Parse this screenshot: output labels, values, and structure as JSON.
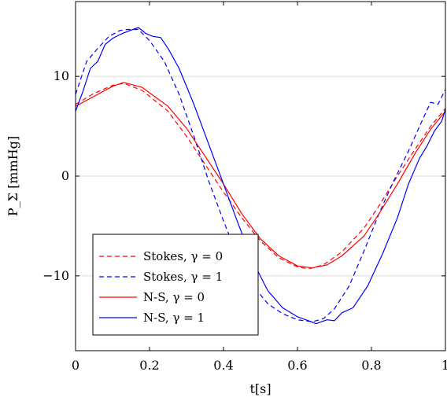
{
  "chart_data": {
    "type": "line",
    "xlabel": "t[s]",
    "ylabel": "P_Σ [mmHg]",
    "xlim": [
      0,
      1
    ],
    "ylim": [
      -17.5,
      17.5
    ],
    "x_ticks": [
      0,
      0.2,
      0.4,
      0.6,
      0.8,
      1
    ],
    "x_tick_labels": [
      "0",
      "0.2",
      "0.4",
      "0.6",
      "0.8",
      "1"
    ],
    "y_ticks": [
      -10,
      0,
      10
    ],
    "y_tick_labels": [
      "−10",
      "0",
      "10"
    ],
    "grid": "horizontal",
    "legend_position": "bottom-left",
    "series": [
      {
        "name": "Stokes, γ = 0",
        "color": "#ff0000",
        "dash": "dashed",
        "points": [
          [
            0,
            7.2
          ],
          [
            0.05,
            8.3
          ],
          [
            0.1,
            9.1
          ],
          [
            0.13,
            9.3
          ],
          [
            0.18,
            8.6
          ],
          [
            0.25,
            6.5
          ],
          [
            0.3,
            4.0
          ],
          [
            0.35,
            1.2
          ],
          [
            0.4,
            -1.6
          ],
          [
            0.45,
            -4.2
          ],
          [
            0.5,
            -6.5
          ],
          [
            0.55,
            -8.2
          ],
          [
            0.6,
            -9.1
          ],
          [
            0.63,
            -9.3
          ],
          [
            0.67,
            -8.9
          ],
          [
            0.72,
            -7.6
          ],
          [
            0.78,
            -5.2
          ],
          [
            0.82,
            -3.0
          ],
          [
            0.87,
            0.0
          ],
          [
            0.92,
            2.8
          ],
          [
            0.96,
            5.0
          ],
          [
            1.0,
            6.8
          ]
        ]
      },
      {
        "name": "Stokes, γ = 1",
        "color": "#0000ff",
        "dash": "dashed",
        "points": [
          [
            0,
            8.2
          ],
          [
            0.03,
            11.5
          ],
          [
            0.06,
            12.8
          ],
          [
            0.09,
            14.0
          ],
          [
            0.12,
            14.6
          ],
          [
            0.14,
            14.7
          ],
          [
            0.17,
            14.7
          ],
          [
            0.2,
            13.6
          ],
          [
            0.24,
            11.5
          ],
          [
            0.28,
            8.2
          ],
          [
            0.32,
            4.0
          ],
          [
            0.36,
            -0.5
          ],
          [
            0.4,
            -4.5
          ],
          [
            0.44,
            -8.2
          ],
          [
            0.48,
            -11.0
          ],
          [
            0.52,
            -12.8
          ],
          [
            0.56,
            -13.8
          ],
          [
            0.6,
            -14.4
          ],
          [
            0.64,
            -14.6
          ],
          [
            0.67,
            -14.3
          ],
          [
            0.7,
            -13.3
          ],
          [
            0.74,
            -11.0
          ],
          [
            0.78,
            -7.5
          ],
          [
            0.82,
            -3.8
          ],
          [
            0.86,
            -0.5
          ],
          [
            0.9,
            2.5
          ],
          [
            0.93,
            5.0
          ],
          [
            0.96,
            7.4
          ],
          [
            0.98,
            7.2
          ],
          [
            1.0,
            8.7
          ]
        ]
      },
      {
        "name": "N-S, γ = 0",
        "color": "#ff0000",
        "dash": "solid",
        "points": [
          [
            0,
            7.0
          ],
          [
            0.05,
            8.0
          ],
          [
            0.1,
            9.0
          ],
          [
            0.13,
            9.4
          ],
          [
            0.18,
            8.9
          ],
          [
            0.25,
            7.0
          ],
          [
            0.3,
            4.8
          ],
          [
            0.35,
            2.0
          ],
          [
            0.4,
            -0.8
          ],
          [
            0.45,
            -3.8
          ],
          [
            0.5,
            -6.3
          ],
          [
            0.55,
            -8.0
          ],
          [
            0.6,
            -9.0
          ],
          [
            0.64,
            -9.2
          ],
          [
            0.68,
            -8.9
          ],
          [
            0.72,
            -8.0
          ],
          [
            0.78,
            -6.0
          ],
          [
            0.82,
            -3.8
          ],
          [
            0.87,
            -0.8
          ],
          [
            0.92,
            2.4
          ],
          [
            0.96,
            4.7
          ],
          [
            1.0,
            6.5
          ]
        ]
      },
      {
        "name": "N-S, γ = 1",
        "color": "#0000ff",
        "dash": "solid",
        "points": [
          [
            0,
            6.5
          ],
          [
            0.02,
            8.5
          ],
          [
            0.04,
            10.8
          ],
          [
            0.06,
            11.5
          ],
          [
            0.08,
            13.2
          ],
          [
            0.1,
            13.8
          ],
          [
            0.12,
            14.2
          ],
          [
            0.14,
            14.5
          ],
          [
            0.17,
            14.9
          ],
          [
            0.19,
            14.3
          ],
          [
            0.21,
            14.0
          ],
          [
            0.23,
            13.9
          ],
          [
            0.25,
            12.8
          ],
          [
            0.28,
            10.8
          ],
          [
            0.32,
            7.2
          ],
          [
            0.36,
            3.2
          ],
          [
            0.4,
            -0.8
          ],
          [
            0.44,
            -4.8
          ],
          [
            0.48,
            -8.6
          ],
          [
            0.52,
            -11.5
          ],
          [
            0.56,
            -13.2
          ],
          [
            0.6,
            -14.1
          ],
          [
            0.63,
            -14.5
          ],
          [
            0.65,
            -14.8
          ],
          [
            0.68,
            -14.4
          ],
          [
            0.7,
            -14.5
          ],
          [
            0.72,
            -13.7
          ],
          [
            0.75,
            -13.2
          ],
          [
            0.79,
            -11.0
          ],
          [
            0.83,
            -7.8
          ],
          [
            0.87,
            -4.2
          ],
          [
            0.9,
            -0.8
          ],
          [
            0.93,
            1.8
          ],
          [
            0.95,
            3.0
          ],
          [
            0.97,
            4.5
          ],
          [
            0.99,
            5.5
          ],
          [
            1.0,
            6.7
          ]
        ]
      }
    ]
  }
}
